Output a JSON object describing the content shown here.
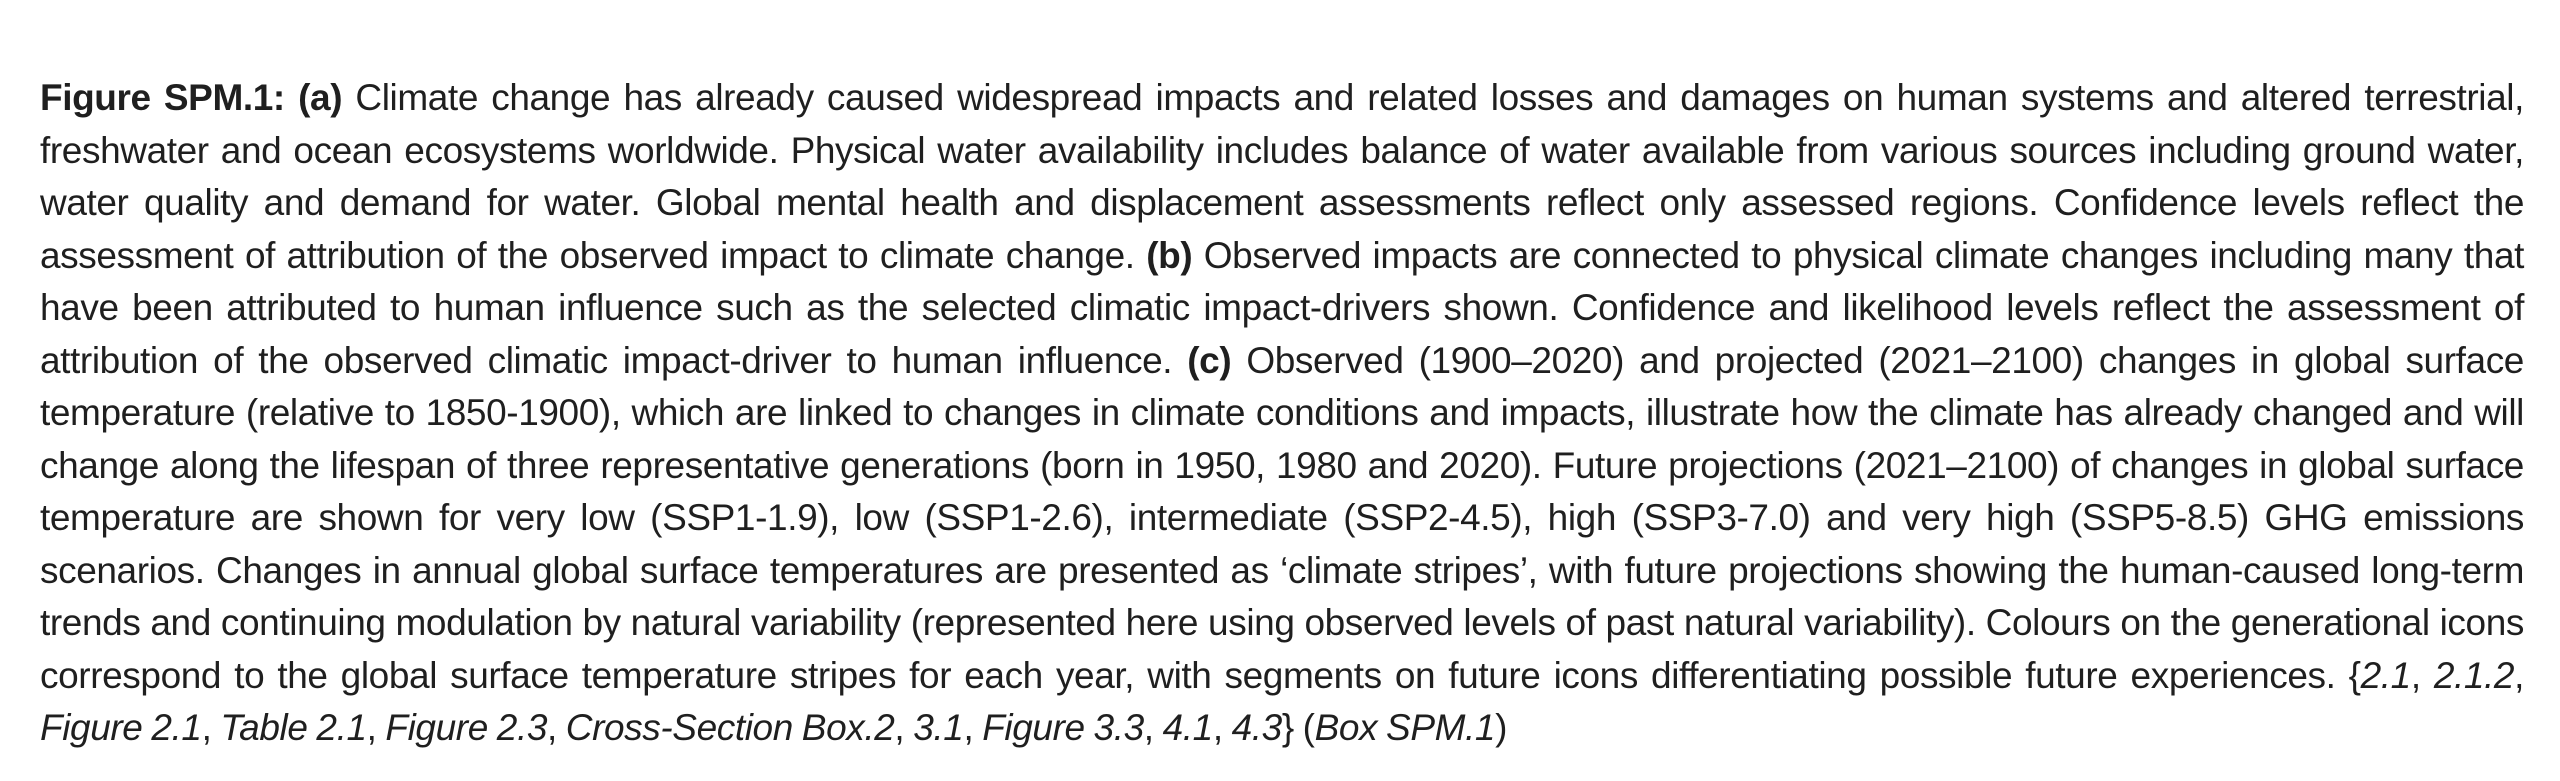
{
  "caption": {
    "figure_label": "Figure SPM.1:",
    "part_a_label": "(a)",
    "part_a_text": " Climate change has already caused widespread impacts and related losses and damages on human systems and altered terrestrial, freshwater and ocean ecosystems worldwide. Physical water availability includes balance of water available from various sources including ground water, water quality and demand for water. Global mental health and displacement assessments reflect only assessed regions. Confidence levels reflect the assessment of attribution of the observed impact to climate change. ",
    "part_b_label": "(b)",
    "part_b_text": " Observed impacts are connected to physical climate changes including many that have been attributed to human influence such as the selected climatic impact-drivers shown. Confidence and likelihood levels reflect the assessment of attribution of the observed climatic impact-driver to human influence. ",
    "part_c_label": "(c)",
    "part_c_text": " Observed (1900–2020) and projected (2021–2100) changes in global surface temperature (relative to 1850-1900), which are linked to changes in climate conditions and impacts, illustrate how the climate has already changed and will change along the lifespan of three representative generations (born in 1950, 1980 and 2020). Future projections (2021–2100) of changes in global surface temperature are shown for very low (SSP1-1.9), low (SSP1-2.6), intermediate (SSP2-4.5), high (SSP3-7.0) and very high (SSP5-8.5) GHG emissions scenarios. Changes in annual global surface temperatures are presented as ‘climate stripes’, with future projections showing the human-caused long-term trends and continuing modulation by natural variability (represented here using observed levels of past natural variability). Colours on the generational icons correspond to the global surface temperature stripes for each year, with segments on future icons differentiating possible future experiences. ",
    "references": {
      "open_brace": "{",
      "items": [
        "2.1",
        "2.1.2",
        "Figure 2.1",
        "Table 2.1",
        "Figure 2.3",
        "Cross-Section Box.2",
        "3.1",
        "Figure 3.3",
        "4.1",
        "4.3"
      ],
      "close_brace": "}",
      "box_open": " (",
      "box_ref": "Box SPM.1",
      "box_close": ")"
    }
  }
}
